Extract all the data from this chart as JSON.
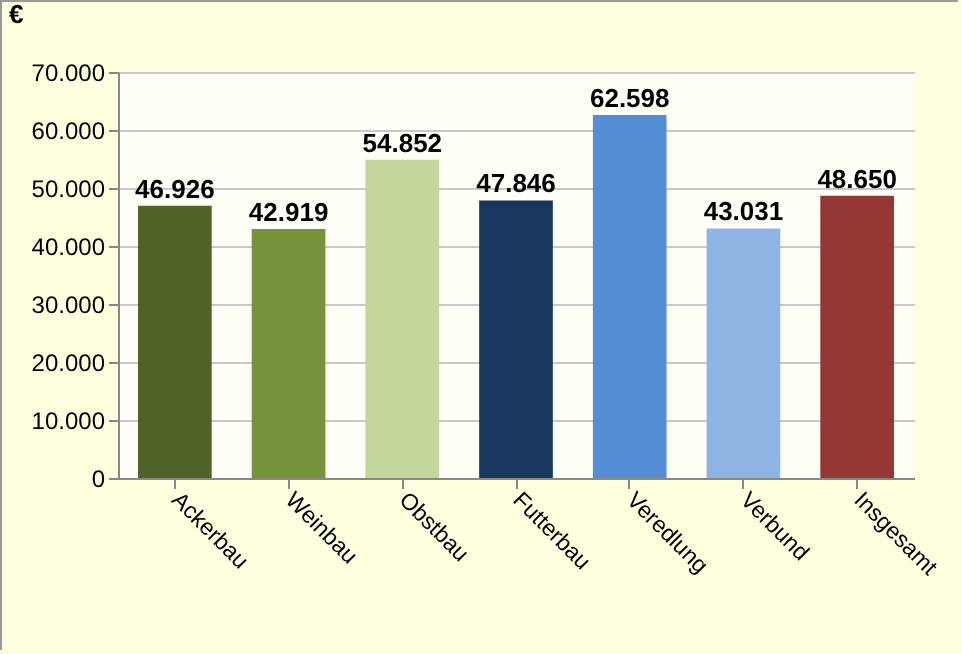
{
  "chart_data": {
    "type": "bar",
    "ylabel": "€",
    "categories": [
      "Ackerbau",
      "Weinbau",
      "Obstbau",
      "Futterbau",
      "Veredlung",
      "Verbund",
      "Insgesamt"
    ],
    "values": [
      46926,
      42919,
      54852,
      47846,
      62598,
      43031,
      48650
    ],
    "colors": [
      "#4f6228",
      "#77933c",
      "#c3d69b",
      "#17375e",
      "#558ed5",
      "#8eb4e3",
      "#953735"
    ],
    "value_labels": [
      "46.926",
      "42.919",
      "54.852",
      "47.846",
      "62.598",
      "43.031",
      "48.650"
    ],
    "ylim": [
      0,
      70000
    ],
    "yticks": [
      {
        "value": 0,
        "label": "0"
      },
      {
        "value": 10000,
        "label": "10.000"
      },
      {
        "value": 20000,
        "label": "20.000"
      },
      {
        "value": 30000,
        "label": "30.000"
      },
      {
        "value": 40000,
        "label": "40.000"
      },
      {
        "value": 50000,
        "label": "50.000"
      },
      {
        "value": 60000,
        "label": "60.000"
      },
      {
        "value": 70000,
        "label": "70.000"
      }
    ],
    "grid": "y",
    "legend": false
  }
}
